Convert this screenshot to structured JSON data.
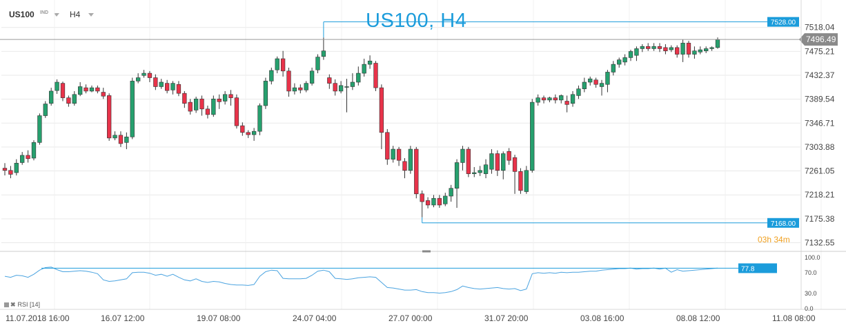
{
  "toolbar": {
    "symbol": "US100",
    "type_tag": "IND",
    "timeframe": "H4"
  },
  "chart_title": "US100, H4",
  "price_axis": {
    "ticks": [
      "7518.04",
      "7475.21",
      "7432.37",
      "7389.54",
      "7346.71",
      "7303.88",
      "7261.05",
      "7218.21",
      "7175.38",
      "7132.55"
    ],
    "current_price": "7496.49",
    "high_label": "7528.00",
    "low_label": "7168.00",
    "countdown": "03h 34m"
  },
  "rsi": {
    "label": "RSI [14]",
    "ticks": [
      "100.0",
      "70.0",
      "30.0",
      "0.0"
    ],
    "value_label": "77.8"
  },
  "time_axis": {
    "labels": [
      "11.07.2018  16:00",
      "16.07  12:00",
      "19.07  08:00",
      "24.07  04:00",
      "27.07  00:00",
      "31.07  20:00",
      "03.08  16:00",
      "08.08  12:00",
      "11.08  08:00"
    ]
  },
  "colors": {
    "bull": "#26a06e",
    "bear": "#e8334a",
    "accent": "#1b9cdb",
    "rsi_line": "#4aa3e0",
    "countdown": "#f0a020"
  },
  "chart_data": {
    "type": "candlestick",
    "interval": "H4",
    "price_range": [
      7122,
      7535
    ],
    "high_line": 7528.0,
    "low_line": 7168.0,
    "current": 7496.49,
    "candles": [
      [
        7266,
        7262,
        7275,
        7253
      ],
      [
        7262,
        7255,
        7270,
        7248
      ],
      [
        7258,
        7275,
        7282,
        7253
      ],
      [
        7276,
        7289,
        7295,
        7272
      ],
      [
        7289,
        7283,
        7298,
        7276
      ],
      [
        7284,
        7312,
        7316,
        7280
      ],
      [
        7312,
        7360,
        7364,
        7308
      ],
      [
        7360,
        7381,
        7386,
        7356
      ],
      [
        7382,
        7404,
        7410,
        7378
      ],
      [
        7405,
        7420,
        7425,
        7399
      ],
      [
        7418,
        7392,
        7421,
        7386
      ],
      [
        7392,
        7382,
        7396,
        7376
      ],
      [
        7382,
        7398,
        7404,
        7378
      ],
      [
        7398,
        7412,
        7420,
        7395
      ],
      [
        7410,
        7404,
        7416,
        7400
      ],
      [
        7404,
        7410,
        7414,
        7402
      ],
      [
        7410,
        7404,
        7414,
        7400
      ],
      [
        7402,
        7395,
        7410,
        7390
      ],
      [
        7396,
        7320,
        7400,
        7315
      ],
      [
        7320,
        7325,
        7332,
        7316
      ],
      [
        7325,
        7310,
        7332,
        7304
      ],
      [
        7312,
        7322,
        7330,
        7300
      ],
      [
        7322,
        7422,
        7428,
        7318
      ],
      [
        7422,
        7428,
        7436,
        7418
      ],
      [
        7432,
        7436,
        7442,
        7428
      ],
      [
        7436,
        7428,
        7440,
        7420
      ],
      [
        7428,
        7412,
        7434,
        7406
      ],
      [
        7412,
        7420,
        7426,
        7408
      ],
      [
        7418,
        7405,
        7424,
        7400
      ],
      [
        7406,
        7418,
        7422,
        7398
      ],
      [
        7416,
        7400,
        7422,
        7395
      ],
      [
        7400,
        7382,
        7404,
        7374
      ],
      [
        7384,
        7368,
        7390,
        7362
      ],
      [
        7370,
        7390,
        7394,
        7365
      ],
      [
        7390,
        7372,
        7396,
        7360
      ],
      [
        7372,
        7362,
        7378,
        7355
      ],
      [
        7362,
        7390,
        7396,
        7358
      ],
      [
        7390,
        7385,
        7398,
        7372
      ],
      [
        7386,
        7398,
        7404,
        7380
      ],
      [
        7398,
        7392,
        7406,
        7378
      ],
      [
        7392,
        7342,
        7398,
        7337
      ],
      [
        7342,
        7330,
        7348,
        7324
      ],
      [
        7330,
        7326,
        7334,
        7320
      ],
      [
        7326,
        7332,
        7338,
        7315
      ],
      [
        7332,
        7378,
        7382,
        7325
      ],
      [
        7378,
        7422,
        7428,
        7372
      ],
      [
        7422,
        7441,
        7446,
        7416
      ],
      [
        7442,
        7462,
        7466,
        7436
      ],
      [
        7462,
        7440,
        7476,
        7430
      ],
      [
        7440,
        7404,
        7446,
        7394
      ],
      [
        7404,
        7410,
        7418,
        7398
      ],
      [
        7410,
        7406,
        7416,
        7400
      ],
      [
        7406,
        7418,
        7422,
        7402
      ],
      [
        7418,
        7440,
        7446,
        7414
      ],
      [
        7442,
        7465,
        7470,
        7436
      ],
      [
        7466,
        7476,
        7500,
        7460
      ],
      [
        7428,
        7418,
        7434,
        7408
      ],
      [
        7418,
        7404,
        7425,
        7396
      ],
      [
        7404,
        7414,
        7422,
        7400
      ],
      [
        7412,
        7412,
        7426,
        7366
      ],
      [
        7412,
        7420,
        7436,
        7406
      ],
      [
        7420,
        7436,
        7448,
        7414
      ],
      [
        7436,
        7452,
        7462,
        7430
      ],
      [
        7452,
        7458,
        7468,
        7444
      ],
      [
        7454,
        7410,
        7458,
        7404
      ],
      [
        7410,
        7330,
        7416,
        7300
      ],
      [
        7330,
        7282,
        7336,
        7272
      ],
      [
        7282,
        7300,
        7306,
        7276
      ],
      [
        7300,
        7280,
        7304,
        7270
      ],
      [
        7278,
        7262,
        7284,
        7248
      ],
      [
        7262,
        7300,
        7306,
        7256
      ],
      [
        7300,
        7220,
        7304,
        7212
      ],
      [
        7220,
        7206,
        7226,
        7178
      ],
      [
        7208,
        7200,
        7214,
        7194
      ],
      [
        7200,
        7212,
        7218,
        7196
      ],
      [
        7212,
        7200,
        7218,
        7195
      ],
      [
        7202,
        7216,
        7222,
        7198
      ],
      [
        7216,
        7230,
        7236,
        7206
      ],
      [
        7230,
        7276,
        7282,
        7195
      ],
      [
        7276,
        7300,
        7306,
        7262
      ],
      [
        7300,
        7256,
        7304,
        7250
      ],
      [
        7256,
        7258,
        7268,
        7250
      ],
      [
        7258,
        7262,
        7270,
        7252
      ],
      [
        7256,
        7272,
        7282,
        7248
      ],
      [
        7264,
        7292,
        7300,
        7256
      ],
      [
        7292,
        7262,
        7298,
        7252
      ],
      [
        7262,
        7292,
        7296,
        7246
      ],
      [
        7296,
        7280,
        7302,
        7272
      ],
      [
        7285,
        7260,
        7290,
        7220
      ],
      [
        7260,
        7226,
        7266,
        7220
      ],
      [
        7224,
        7262,
        7270,
        7220
      ],
      [
        7262,
        7384,
        7390,
        7258
      ],
      [
        7384,
        7392,
        7398,
        7378
      ],
      [
        7392,
        7388,
        7396,
        7382
      ],
      [
        7388,
        7392,
        7394,
        7384
      ],
      [
        7392,
        7388,
        7398,
        7382
      ],
      [
        7388,
        7396,
        7398,
        7382
      ],
      [
        7386,
        7380,
        7396,
        7366
      ],
      [
        7382,
        7398,
        7404,
        7376
      ],
      [
        7396,
        7408,
        7414,
        7390
      ],
      [
        7408,
        7420,
        7428,
        7402
      ],
      [
        7420,
        7426,
        7430,
        7414
      ],
      [
        7424,
        7416,
        7428,
        7410
      ],
      [
        7412,
        7418,
        7424,
        7396
      ],
      [
        7416,
        7438,
        7442,
        7402
      ],
      [
        7438,
        7452,
        7458,
        7432
      ],
      [
        7452,
        7460,
        7464,
        7446
      ],
      [
        7456,
        7464,
        7470,
        7450
      ],
      [
        7464,
        7475,
        7478,
        7458
      ],
      [
        7468,
        7480,
        7484,
        7458
      ],
      [
        7480,
        7484,
        7488,
        7474
      ],
      [
        7484,
        7480,
        7490,
        7476
      ],
      [
        7480,
        7484,
        7490,
        7476
      ],
      [
        7484,
        7480,
        7490,
        7474
      ],
      [
        7482,
        7476,
        7488,
        7470
      ],
      [
        7478,
        7482,
        7486,
        7474
      ],
      [
        7482,
        7470,
        7486,
        7464
      ],
      [
        7470,
        7490,
        7496,
        7456
      ],
      [
        7490,
        7470,
        7494,
        7464
      ],
      [
        7470,
        7476,
        7484,
        7462
      ],
      [
        7474,
        7478,
        7484,
        7470
      ],
      [
        7476,
        7480,
        7484,
        7472
      ],
      [
        7480,
        7482,
        7484,
        7476
      ],
      [
        7482,
        7496,
        7500,
        7480
      ]
    ],
    "rsi_series": [
      62,
      60,
      64,
      63,
      60,
      66,
      74,
      79,
      80,
      75,
      71,
      71,
      72,
      73,
      72,
      70,
      67,
      55,
      52,
      53,
      55,
      57,
      69,
      70,
      70,
      68,
      64,
      66,
      62,
      66,
      60,
      55,
      53,
      57,
      52,
      50,
      52,
      51,
      48,
      46,
      45,
      45,
      44,
      46,
      62,
      71,
      74,
      73,
      58,
      57,
      57,
      57,
      58,
      64,
      72,
      74,
      71,
      58,
      57,
      56,
      57,
      59,
      60,
      61,
      60,
      50,
      40,
      39,
      37,
      35,
      35,
      36,
      32,
      30,
      30,
      29,
      30,
      32,
      36,
      43,
      40,
      38,
      37,
      38,
      39,
      40,
      38,
      37,
      38,
      34,
      37,
      67,
      69,
      68,
      69,
      68,
      70,
      69,
      70,
      70,
      71,
      72,
      72,
      74,
      75,
      76,
      77,
      77,
      78,
      76,
      77,
      77,
      78,
      76,
      78,
      70,
      75,
      72,
      73,
      74,
      75,
      76,
      77,
      78
    ],
    "rsi_level": 77.8,
    "rsi_range": [
      0,
      100
    ]
  }
}
